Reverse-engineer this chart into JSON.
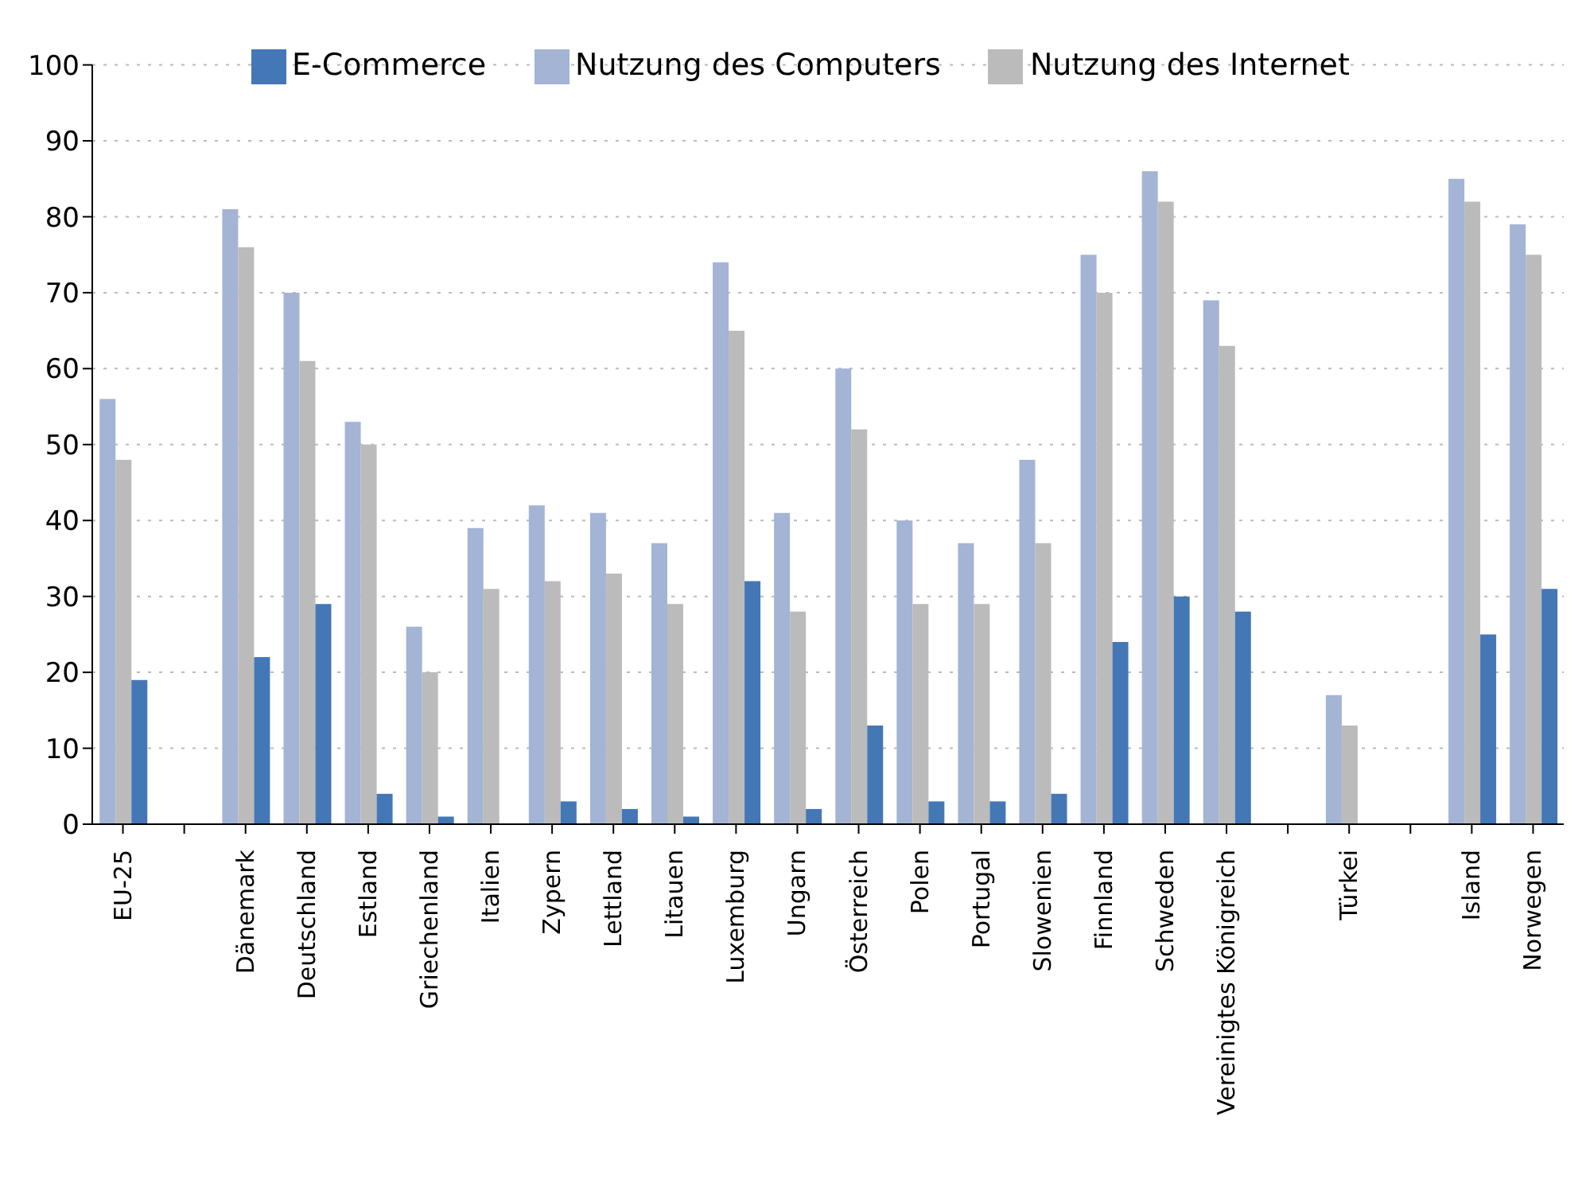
{
  "chart_data": {
    "type": "bar",
    "categories": [
      "EU-25",
      null,
      "Dänemark",
      "Deutschland",
      "Estland",
      "Griechenland",
      "Italien",
      "Zypern",
      "Lettland",
      "Litauen",
      "Luxemburg",
      "Ungarn",
      "Österreich",
      "Polen",
      "Portugal",
      "Slowenien",
      "Finnland",
      "Schweden",
      "Vereinigtes Königreich",
      null,
      "Türkei",
      null,
      "Island",
      "Norwegen"
    ],
    "series": [
      {
        "name": "Nutzung des Computers",
        "color": "#a3b4d4",
        "values": [
          56,
          null,
          81,
          70,
          53,
          26,
          39,
          42,
          41,
          37,
          74,
          41,
          60,
          40,
          37,
          48,
          75,
          86,
          69,
          null,
          17,
          null,
          85,
          79
        ]
      },
      {
        "name": "Nutzung des Internet",
        "color": "#bbbbbb",
        "values": [
          48,
          null,
          76,
          61,
          50,
          20,
          31,
          32,
          33,
          29,
          65,
          28,
          52,
          29,
          29,
          37,
          70,
          82,
          63,
          null,
          13,
          null,
          82,
          75
        ]
      },
      {
        "name": "E-Commerce",
        "color": "#4477b5",
        "values": [
          19,
          null,
          22,
          29,
          4,
          1,
          null,
          3,
          2,
          1,
          32,
          2,
          13,
          3,
          3,
          4,
          24,
          30,
          28,
          null,
          null,
          null,
          25,
          31
        ]
      }
    ],
    "ylim": [
      0,
      100
    ],
    "yticks": [
      0,
      10,
      20,
      30,
      40,
      50,
      60,
      70,
      80,
      90,
      100
    ],
    "grid": "y",
    "legend": "top"
  }
}
